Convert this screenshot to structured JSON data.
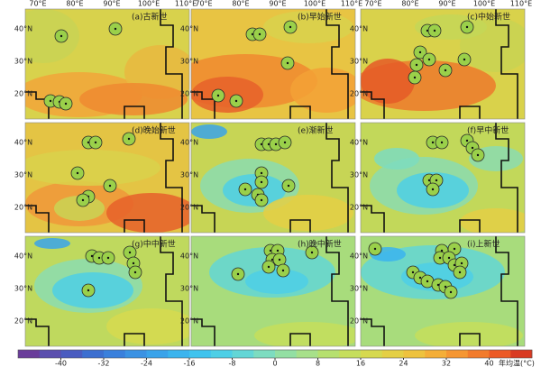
{
  "map": {
    "panels": [
      "(a)古新世",
      "(b)早始新世",
      "(c)中始新世",
      "(d)晚始新世",
      "(e)渐新世",
      "(f)早中新世",
      "(g)中中新世",
      "(h)晚中新世",
      "(i)上新世"
    ],
    "lon_labels": [
      "70°E",
      "80°E",
      "90°E",
      "100°E",
      "110°E"
    ],
    "lat_labels": [
      "40°N",
      "30°N",
      "20°N"
    ],
    "colorbar": {
      "range": [
        -48,
        48
      ],
      "ticks": [
        -40,
        -32,
        -24,
        -16,
        -8,
        0,
        8,
        16,
        24,
        32,
        40
      ],
      "unit": "年均温(°C)",
      "colors": [
        "#6a3d9a",
        "#5b4fae",
        "#4a5cc0",
        "#3c6fd0",
        "#3a80dc",
        "#3b92e3",
        "#3aa3ea",
        "#3bb4ee",
        "#3fc3ee",
        "#4dcfe6",
        "#63d6d6",
        "#7ddcc0",
        "#93dfa3",
        "#a7e08a",
        "#b6e06f",
        "#c6de5c",
        "#d6d94f",
        "#e4cf45",
        "#eec23e",
        "#f4ae38",
        "#f59632",
        "#f27b2c",
        "#ec5a26",
        "#d93a22"
      ]
    }
  }
}
